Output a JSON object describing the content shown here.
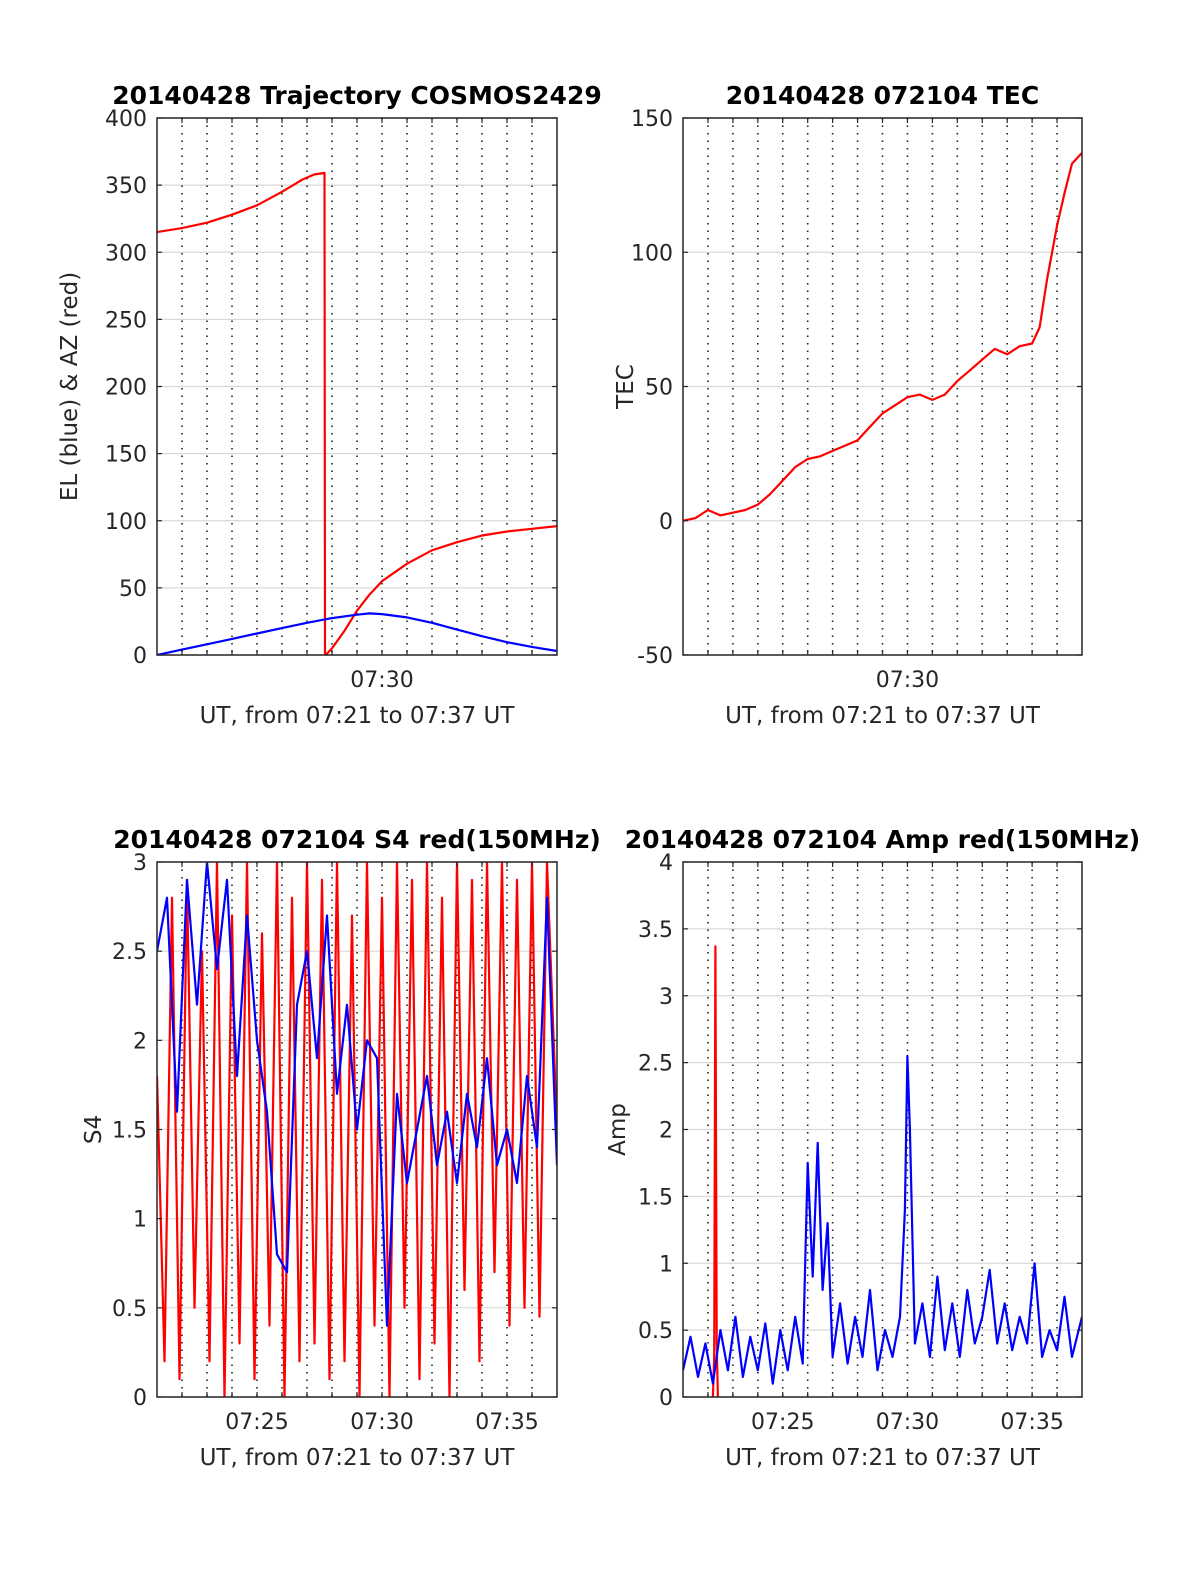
{
  "chart_data": [
    {
      "type": "line",
      "title": "20140428 Trajectory COSMOS2429",
      "xlabel": "UT, from 07:21 to 07:37 UT",
      "ylabel": "EL (blue) & AZ (red)",
      "xlim": [
        0,
        16
      ],
      "ylim": [
        0,
        400
      ],
      "yticks": [
        0,
        50,
        100,
        150,
        200,
        250,
        300,
        350,
        400
      ],
      "ytick_labels": [
        "0",
        "50",
        "100",
        "150",
        "200",
        "250",
        "300",
        "350",
        "400"
      ],
      "xticks": [
        9
      ],
      "xtick_labels": [
        "07:30"
      ],
      "grid": {
        "x": "dotted",
        "y": "solid"
      },
      "series": [
        {
          "color": "#ff0000",
          "x": [
            0,
            1,
            2,
            3,
            4,
            5,
            5.8,
            6.3,
            6.7,
            6.72,
            6.75,
            7,
            7.5,
            8,
            8.5,
            9,
            10,
            11,
            12,
            13,
            14,
            15,
            16
          ],
          "values": [
            315,
            318,
            322,
            328,
            335,
            345,
            354,
            358,
            359,
            0,
            0,
            5,
            18,
            33,
            45,
            55,
            68,
            78,
            84,
            89,
            92,
            94,
            96
          ]
        },
        {
          "color": "#0000ff",
          "x": [
            0,
            1,
            2,
            3,
            4,
            5,
            6,
            7,
            8,
            8.5,
            9,
            10,
            11,
            12,
            13,
            14,
            15,
            16
          ],
          "values": [
            0,
            4,
            8,
            12,
            16,
            20,
            24,
            27.5,
            30,
            31,
            30.5,
            28,
            24,
            19,
            14,
            9.5,
            6,
            3
          ]
        }
      ]
    },
    {
      "type": "line",
      "title": "20140428 072104 TEC",
      "xlabel": "UT, from 07:21 to 07:37 UT",
      "ylabel": "TEC",
      "xlim": [
        0,
        16
      ],
      "ylim": [
        -50,
        150
      ],
      "yticks": [
        -50,
        0,
        50,
        100,
        150
      ],
      "ytick_labels": [
        "-50",
        "0",
        "50",
        "100",
        "150"
      ],
      "xticks": [
        9
      ],
      "xtick_labels": [
        "07:30"
      ],
      "grid": {
        "x": "dotted",
        "y": "solid"
      },
      "series": [
        {
          "color": "#ff0000",
          "x": [
            0,
            0.5,
            1,
            1.5,
            2,
            2.5,
            3,
            3.5,
            4,
            4.5,
            5,
            5.5,
            6,
            6.5,
            7,
            7.5,
            8,
            8.5,
            9,
            9.5,
            10,
            10.5,
            11,
            11.5,
            12,
            12.5,
            13,
            13.5,
            14,
            14.3,
            14.6,
            15,
            15.3,
            15.6,
            16
          ],
          "values": [
            0,
            1,
            4,
            2,
            3,
            4,
            6,
            10,
            15,
            20,
            23,
            24,
            26,
            28,
            30,
            35,
            40,
            43,
            46,
            47,
            45,
            47,
            52,
            56,
            60,
            64,
            62,
            65,
            66,
            72,
            90,
            110,
            122,
            133,
            137
          ]
        }
      ]
    },
    {
      "type": "line",
      "title": "20140428 072104 S4 red(150MHz)",
      "xlabel": "UT, from 07:21 to 07:37 UT",
      "ylabel": "S4",
      "xlim": [
        0,
        16
      ],
      "ylim": [
        0,
        3
      ],
      "yticks": [
        0,
        0.5,
        1,
        1.5,
        2,
        2.5,
        3
      ],
      "ytick_labels": [
        "0",
        "0.5",
        "1",
        "1.5",
        "2",
        "2.5",
        "3"
      ],
      "xticks": [
        4,
        9,
        14
      ],
      "xtick_labels": [
        "07:25",
        "07:30",
        "07:35"
      ],
      "grid": {
        "x": "dotted",
        "y": "solid"
      },
      "series": [
        {
          "color": "#ff0000",
          "x": [
            0,
            0.3,
            0.6,
            0.9,
            1.2,
            1.5,
            1.8,
            2.1,
            2.4,
            2.7,
            3,
            3.3,
            3.6,
            3.9,
            4.2,
            4.5,
            4.8,
            5.1,
            5.4,
            5.7,
            6,
            6.3,
            6.6,
            6.9,
            7.2,
            7.5,
            7.8,
            8.1,
            8.4,
            8.7,
            9,
            9.3,
            9.6,
            9.9,
            10.2,
            10.5,
            10.8,
            11.1,
            11.4,
            11.7,
            12,
            12.3,
            12.6,
            12.9,
            13.2,
            13.5,
            13.8,
            14.1,
            14.4,
            14.7,
            15,
            15.3,
            15.6,
            16
          ],
          "values": [
            1.8,
            0.2,
            2.8,
            0.1,
            2.9,
            0.5,
            2.5,
            0.2,
            3,
            0,
            2.7,
            0.3,
            3,
            0.1,
            2.6,
            0.4,
            3,
            0,
            2.8,
            0.2,
            3,
            0.3,
            2.9,
            0.1,
            3,
            0.2,
            2.7,
            0,
            3,
            0.4,
            2.8,
            0,
            3,
            0.5,
            2.9,
            0.1,
            3,
            0.3,
            2.8,
            0,
            3,
            0.6,
            2.9,
            0.2,
            3,
            0.7,
            3,
            0.4,
            2.9,
            0.5,
            3,
            0.45,
            3,
            1.5
          ]
        },
        {
          "color": "#0000ff",
          "x": [
            0,
            0.4,
            0.8,
            1.2,
            1.6,
            2,
            2.4,
            2.8,
            3.2,
            3.6,
            4,
            4.4,
            4.8,
            5.2,
            5.6,
            6,
            6.4,
            6.8,
            7.2,
            7.6,
            8,
            8.4,
            8.8,
            9.2,
            9.6,
            10,
            10.4,
            10.8,
            11.2,
            11.6,
            12,
            12.4,
            12.8,
            13.2,
            13.6,
            14,
            14.4,
            14.8,
            15.2,
            15.6,
            16
          ],
          "values": [
            2.5,
            2.8,
            1.6,
            2.9,
            2.2,
            3,
            2.4,
            2.9,
            1.8,
            2.7,
            2,
            1.6,
            0.8,
            0.7,
            2.2,
            2.5,
            1.9,
            2.7,
            1.7,
            2.2,
            1.5,
            2,
            1.9,
            0.4,
            1.7,
            1.2,
            1.5,
            1.8,
            1.3,
            1.6,
            1.2,
            1.7,
            1.4,
            1.9,
            1.3,
            1.5,
            1.2,
            1.8,
            1.4,
            2.8,
            1.3
          ]
        }
      ]
    },
    {
      "type": "line",
      "title": "20140428 072104 Amp red(150MHz)",
      "xlabel": "UT, from 07:21 to 07:37 UT",
      "ylabel": "Amp",
      "xlim": [
        0,
        16
      ],
      "ylim": [
        0,
        4
      ],
      "yticks": [
        0,
        0.5,
        1,
        1.5,
        2,
        2.5,
        3,
        3.5,
        4
      ],
      "ytick_labels": [
        "0",
        "0.5",
        "1",
        "1.5",
        "2",
        "2.5",
        "3",
        "3.5",
        "4"
      ],
      "xticks": [
        4,
        9,
        14
      ],
      "xtick_labels": [
        "07:25",
        "07:30",
        "07:35"
      ],
      "grid": {
        "x": "dotted",
        "y": "solid"
      },
      "series": [
        {
          "color": "#ff0000",
          "x": [
            1.2,
            1.25,
            1.3,
            1.35,
            1.4
          ],
          "values": [
            0,
            0.3,
            3.37,
            0.4,
            0
          ]
        },
        {
          "color": "#0000ff",
          "x": [
            0,
            0.3,
            0.6,
            0.9,
            1.2,
            1.5,
            1.8,
            2.1,
            2.4,
            2.7,
            3,
            3.3,
            3.6,
            3.9,
            4.2,
            4.5,
            4.8,
            5,
            5.2,
            5.4,
            5.6,
            5.8,
            6,
            6.3,
            6.6,
            6.9,
            7.2,
            7.5,
            7.8,
            8.1,
            8.4,
            8.7,
            8.9,
            9,
            9.1,
            9.3,
            9.6,
            9.9,
            10.2,
            10.5,
            10.8,
            11.1,
            11.4,
            11.7,
            12,
            12.3,
            12.6,
            12.9,
            13.2,
            13.5,
            13.8,
            14.1,
            14.4,
            14.7,
            15,
            15.3,
            15.6,
            16
          ],
          "values": [
            0.2,
            0.45,
            0.15,
            0.4,
            0.1,
            0.5,
            0.2,
            0.6,
            0.15,
            0.45,
            0.2,
            0.55,
            0.1,
            0.5,
            0.2,
            0.6,
            0.25,
            1.75,
            0.9,
            1.9,
            0.8,
            1.3,
            0.3,
            0.7,
            0.25,
            0.6,
            0.3,
            0.8,
            0.2,
            0.5,
            0.3,
            0.6,
            1.4,
            2.55,
            2.0,
            0.4,
            0.7,
            0.3,
            0.9,
            0.35,
            0.7,
            0.3,
            0.8,
            0.4,
            0.6,
            0.95,
            0.4,
            0.7,
            0.35,
            0.6,
            0.4,
            1.0,
            0.3,
            0.5,
            0.35,
            0.75,
            0.3,
            0.6
          ]
        }
      ]
    }
  ]
}
